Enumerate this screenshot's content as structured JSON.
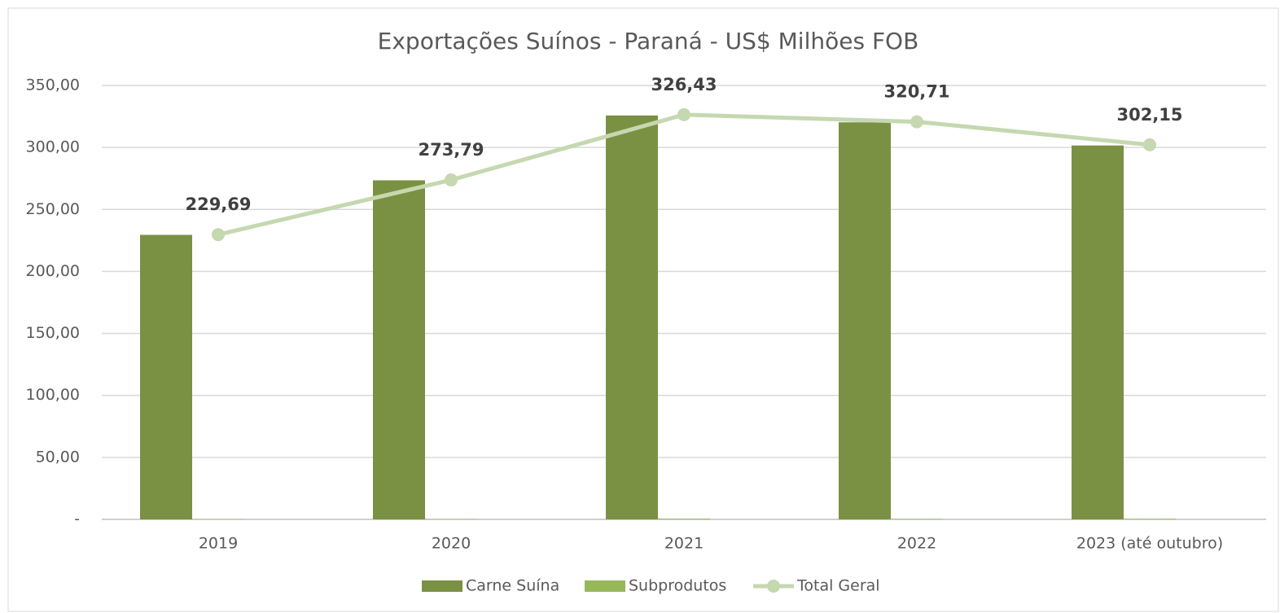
{
  "chart_data": {
    "type": "bar_line",
    "title": "Exportações Suínos - Paraná - US$ Milhões FOB",
    "categories": [
      "2019",
      "2020",
      "2021",
      "2022",
      "2023 (até outubro)"
    ],
    "series": [
      {
        "name": "Carne Suína",
        "type": "bar",
        "color": "#7a9143",
        "values": [
          229.5,
          273.5,
          325.8,
          320.3,
          301.6
        ]
      },
      {
        "name": "Subprodutos",
        "type": "bar",
        "color": "#97b85a",
        "values": [
          0.2,
          0.3,
          0.6,
          0.4,
          0.5
        ]
      },
      {
        "name": "Total Geral",
        "type": "line",
        "color": "#c5d8b0",
        "values": [
          229.69,
          273.79,
          326.43,
          320.71,
          302.15
        ],
        "value_labels": [
          "229,69",
          "273,79",
          "326,43",
          "320,71",
          "302,15"
        ]
      }
    ],
    "ylim": [
      0,
      350
    ],
    "yticks": [
      {
        "value": 0,
        "label": "-"
      },
      {
        "value": 50,
        "label": "50,00"
      },
      {
        "value": 100,
        "label": "100,00"
      },
      {
        "value": 150,
        "label": "150,00"
      },
      {
        "value": 200,
        "label": "200,00"
      },
      {
        "value": 250,
        "label": "250,00"
      },
      {
        "value": 300,
        "label": "300,00"
      },
      {
        "value": 350,
        "label": "350,00"
      }
    ],
    "grid": true,
    "legend": "bottom"
  }
}
